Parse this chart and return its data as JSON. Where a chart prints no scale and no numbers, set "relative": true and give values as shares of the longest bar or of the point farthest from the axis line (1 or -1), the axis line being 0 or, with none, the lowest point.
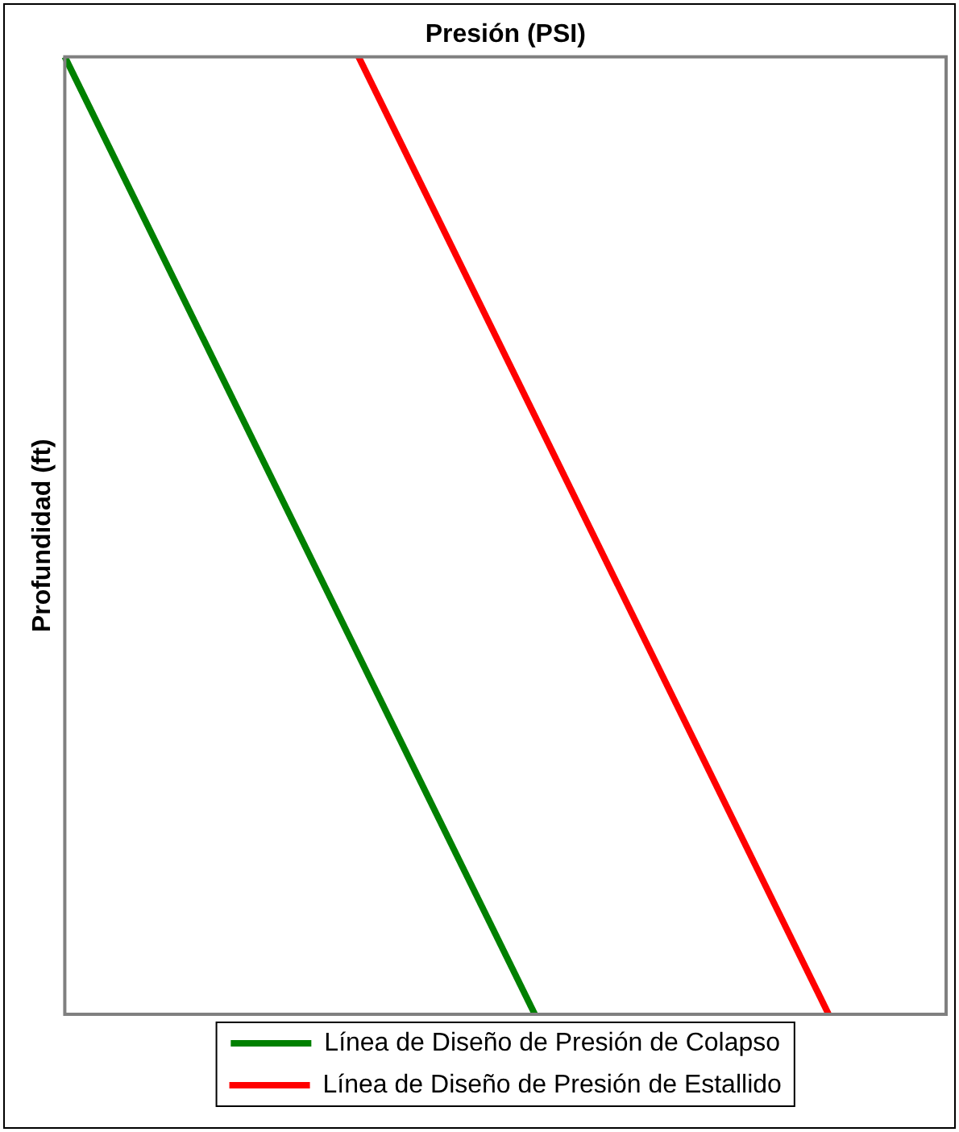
{
  "chart_data": {
    "type": "line",
    "xlabel": "Presión (PSI)",
    "ylabel": "Profundidad (ft)",
    "relative": true,
    "legend": "bottom",
    "grid": false,
    "marker": "none",
    "line_style": "solid",
    "categories": [
      null,
      null,
      null,
      null,
      null,
      null,
      null,
      null,
      null,
      null,
      null,
      null,
      null,
      null,
      null,
      null,
      null,
      null,
      null,
      null,
      null,
      null,
      null,
      null,
      null,
      null,
      null,
      null,
      null,
      null,
      null
    ],
    "series": [
      {
        "name": "Línea de Diseño de Presión de Colapso",
        "color": "#008000",
        "values": [
          0,
          null,
          null,
          null,
          null,
          null,
          null,
          null,
          null,
          null,
          null,
          null,
          null,
          null,
          null,
          null,
          -1,
          null,
          null,
          null,
          null,
          null,
          null,
          null,
          null,
          null,
          null,
          null,
          null,
          null,
          null
        ]
      },
      {
        "name": "Línea de Diseño de Presión de Estallido",
        "color": "#ff0000",
        "values": [
          null,
          null,
          null,
          null,
          null,
          null,
          null,
          null,
          null,
          null,
          0,
          null,
          null,
          null,
          null,
          null,
          null,
          null,
          null,
          null,
          null,
          null,
          null,
          null,
          null,
          null,
          -1,
          null,
          null,
          null,
          null
        ]
      }
    ]
  }
}
